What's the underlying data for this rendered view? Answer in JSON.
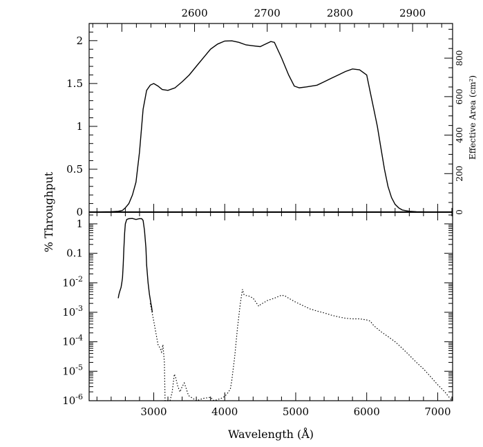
{
  "chart_data": [
    {
      "type": "line",
      "panel": "top",
      "ylabel": "% Throughput",
      "right_ylabel": "Effective Area (cm²)",
      "xlim": [
        2090,
        7210
      ],
      "ylim": [
        0,
        2.2
      ],
      "top_axis_lim": [
        2455,
        2955
      ],
      "x_ticks": [
        3000,
        4000,
        5000,
        6000,
        7000
      ],
      "top_axis_ticks": [
        2600,
        2700,
        2800,
        2900
      ],
      "top_axis_tick_labels": [
        "2600",
        "2700",
        "2800",
        "2900"
      ],
      "y_ticks": [
        0,
        0.5,
        1,
        1.5,
        2
      ],
      "y_tick_labels": [
        "0",
        "0.5",
        "1",
        "1.5",
        "2"
      ],
      "right_axis_ticks": [
        0,
        200,
        400,
        600,
        800
      ],
      "right_axis_tick_labels": [
        "0",
        "200",
        "400",
        "600",
        "800"
      ],
      "right_axis_max": 980,
      "grid": false,
      "series": [
        {
          "line_style": "solid",
          "points": [
            [
              2100,
              0
            ],
            [
              2400,
              0.005
            ],
            [
              2500,
              0.01
            ],
            [
              2560,
              0.02
            ],
            [
              2600,
              0.05
            ],
            [
              2650,
              0.1
            ],
            [
              2700,
              0.2
            ],
            [
              2750,
              0.35
            ],
            [
              2800,
              0.7
            ],
            [
              2850,
              1.2
            ],
            [
              2900,
              1.42
            ],
            [
              2950,
              1.48
            ],
            [
              3000,
              1.5
            ],
            [
              3060,
              1.47
            ],
            [
              3120,
              1.43
            ],
            [
              3200,
              1.42
            ],
            [
              3300,
              1.45
            ],
            [
              3400,
              1.52
            ],
            [
              3500,
              1.6
            ],
            [
              3600,
              1.7
            ],
            [
              3700,
              1.8
            ],
            [
              3800,
              1.9
            ],
            [
              3900,
              1.96
            ],
            [
              4000,
              1.995
            ],
            [
              4100,
              1.998
            ],
            [
              4200,
              1.98
            ],
            [
              4300,
              1.95
            ],
            [
              4400,
              1.94
            ],
            [
              4500,
              1.93
            ],
            [
              4550,
              1.95
            ],
            [
              4650,
              1.99
            ],
            [
              4700,
              1.98
            ],
            [
              4800,
              1.8
            ],
            [
              4900,
              1.6
            ],
            [
              4980,
              1.47
            ],
            [
              5050,
              1.45
            ],
            [
              5150,
              1.46
            ],
            [
              5300,
              1.48
            ],
            [
              5400,
              1.52
            ],
            [
              5500,
              1.56
            ],
            [
              5600,
              1.6
            ],
            [
              5700,
              1.64
            ],
            [
              5800,
              1.67
            ],
            [
              5900,
              1.66
            ],
            [
              6000,
              1.6
            ],
            [
              6050,
              1.4
            ],
            [
              6100,
              1.2
            ],
            [
              6150,
              1.0
            ],
            [
              6200,
              0.75
            ],
            [
              6250,
              0.5
            ],
            [
              6300,
              0.3
            ],
            [
              6350,
              0.17
            ],
            [
              6400,
              0.09
            ],
            [
              6450,
              0.05
            ],
            [
              6500,
              0.025
            ],
            [
              6600,
              0.01
            ],
            [
              6700,
              0.004
            ],
            [
              6900,
              0.002
            ],
            [
              7200,
              0.001
            ]
          ]
        }
      ]
    },
    {
      "type": "line",
      "panel": "bottom",
      "xlabel": "Wavelength (Å)",
      "xlim": [
        2090,
        7210
      ],
      "y_scale": "log",
      "ylim": [
        1e-06,
        2.5
      ],
      "x_ticks": [
        3000,
        4000,
        5000,
        6000,
        7000
      ],
      "x_tick_labels": [
        "3000",
        "4000",
        "5000",
        "6000",
        "7000"
      ],
      "y_ticks": [
        1e-06,
        1e-05,
        0.0001,
        0.001,
        0.01,
        0.1,
        1
      ],
      "y_tick_labels": [
        {
          "base": "10",
          "exp": "-6"
        },
        {
          "base": "10",
          "exp": "-5"
        },
        {
          "base": "10",
          "exp": "-4"
        },
        {
          "base": "10",
          "exp": "-3"
        },
        {
          "base": "10",
          "exp": "-2"
        },
        {
          "base": "0.1",
          "exp": ""
        },
        {
          "base": "1",
          "exp": ""
        }
      ],
      "grid": false,
      "series": [
        {
          "line_style": "solid",
          "points": [
            [
              2500,
              0.003
            ],
            [
              2510,
              0.004
            ],
            [
              2520,
              0.005
            ],
            [
              2540,
              0.007
            ],
            [
              2550,
              0.01
            ],
            [
              2560,
              0.015
            ],
            [
              2570,
              0.04
            ],
            [
              2580,
              0.15
            ],
            [
              2590,
              0.5
            ],
            [
              2600,
              1.0
            ],
            [
              2620,
              1.4
            ],
            [
              2650,
              1.5
            ],
            [
              2700,
              1.52
            ],
            [
              2750,
              1.4
            ],
            [
              2800,
              1.5
            ],
            [
              2830,
              1.5
            ],
            [
              2850,
              1.3
            ],
            [
              2870,
              0.6
            ],
            [
              2890,
              0.15
            ],
            [
              2900,
              0.04
            ],
            [
              2920,
              0.01
            ],
            [
              2940,
              0.004
            ],
            [
              2960,
              0.002
            ],
            [
              2970,
              0.0015
            ],
            [
              2980,
              0.001
            ]
          ]
        },
        {
          "line_style": "dotted",
          "points": [
            [
              2950,
              0.002
            ],
            [
              2970,
              0.0012
            ],
            [
              3000,
              0.0005
            ],
            [
              3030,
              0.0002
            ],
            [
              3060,
              8e-05
            ],
            [
              3090,
              6e-05
            ],
            [
              3110,
              4.5e-05
            ],
            [
              3130,
              8e-05
            ],
            [
              3150,
              2e-05
            ],
            [
              3160,
              1e-06
            ],
            [
              3230,
              1e-06
            ],
            [
              3260,
              2e-06
            ],
            [
              3290,
              8e-06
            ],
            [
              3310,
              6e-06
            ],
            [
              3340,
              3e-06
            ],
            [
              3370,
              2e-06
            ],
            [
              3400,
              3e-06
            ],
            [
              3430,
              4e-06
            ],
            [
              3460,
              2.5e-06
            ],
            [
              3490,
              1.5e-06
            ],
            [
              3550,
              1.2e-06
            ],
            [
              3600,
              1e-06
            ],
            [
              3700,
              1.2e-06
            ],
            [
              3800,
              1.3e-06
            ],
            [
              3850,
              1e-06
            ],
            [
              3950,
              1.2e-06
            ],
            [
              4000,
              1.4e-06
            ],
            [
              4040,
              1.8e-06
            ],
            [
              4080,
              2.5e-06
            ],
            [
              4100,
              5e-06
            ],
            [
              4140,
              3e-05
            ],
            [
              4180,
              0.0003
            ],
            [
              4220,
              0.002
            ],
            [
              4250,
              0.006
            ],
            [
              4270,
              0.004
            ],
            [
              4300,
              0.0037
            ],
            [
              4350,
              0.0035
            ],
            [
              4400,
              0.003
            ],
            [
              4450,
              0.002
            ],
            [
              4480,
              0.0016
            ],
            [
              4500,
              0.0018
            ],
            [
              4600,
              0.0025
            ],
            [
              4700,
              0.003
            ],
            [
              4800,
              0.0038
            ],
            [
              4850,
              0.0036
            ],
            [
              4900,
              0.003
            ],
            [
              5000,
              0.0022
            ],
            [
              5100,
              0.0017
            ],
            [
              5200,
              0.0013
            ],
            [
              5300,
              0.0011
            ],
            [
              5400,
              0.00095
            ],
            [
              5500,
              0.0008
            ],
            [
              5600,
              0.0007
            ],
            [
              5700,
              0.00063
            ],
            [
              5800,
              0.0006
            ],
            [
              5900,
              0.0006
            ],
            [
              6000,
              0.00055
            ],
            [
              6050,
              0.0005
            ],
            [
              6100,
              0.00035
            ],
            [
              6200,
              0.00022
            ],
            [
              6300,
              0.00015
            ],
            [
              6400,
              0.0001
            ],
            [
              6500,
              6e-05
            ],
            [
              6600,
              3.5e-05
            ],
            [
              6700,
              2e-05
            ],
            [
              6800,
              1.2e-05
            ],
            [
              6900,
              6.5e-06
            ],
            [
              7000,
              3.5e-06
            ],
            [
              7100,
              2e-06
            ],
            [
              7200,
              1e-06
            ]
          ]
        }
      ]
    }
  ]
}
